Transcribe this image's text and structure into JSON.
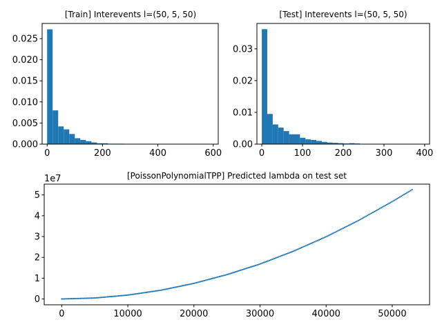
{
  "figure": {
    "background": "#ffffff",
    "series_color": "#1f77b4"
  },
  "chart_data": [
    {
      "type": "bar",
      "title": "[Train] Interevents l=(50, 5, 50)",
      "xlabel": "",
      "ylabel": "",
      "xlim": [
        -18,
        618
      ],
      "ylim": [
        0,
        0.0286
      ],
      "xticks": [
        0,
        200,
        400,
        600
      ],
      "xtick_labels": [
        "0",
        "200",
        "400",
        "600"
      ],
      "yticks": [
        0,
        0.005,
        0.01,
        0.015,
        0.02,
        0.025
      ],
      "ytick_labels": [
        "0.000",
        "0.005",
        "0.010",
        "0.015",
        "0.020",
        "0.025"
      ],
      "bin_width": 20,
      "bin_start": 0,
      "values": [
        0.0272,
        0.008,
        0.0042,
        0.0035,
        0.0024,
        0.0014,
        0.001,
        0.0007,
        0.0004,
        0.0002,
        0.0002,
        0.0001,
        0.0001,
        0.0001,
        5e-05,
        3e-05,
        2e-05,
        1e-05,
        1e-05,
        1e-05,
        1e-05,
        1e-05,
        1e-05,
        1e-05,
        1e-05,
        1e-05,
        1e-05,
        1e-05,
        1e-05
      ]
    },
    {
      "type": "bar",
      "title": "[Test] Interevents l=(50, 5, 50)",
      "xlabel": "",
      "ylabel": "",
      "xlim": [
        -12,
        412
      ],
      "ylim": [
        0,
        0.038
      ],
      "xticks": [
        0,
        100,
        200,
        300,
        400
      ],
      "xtick_labels": [
        "0",
        "100",
        "200",
        "300",
        "400"
      ],
      "yticks": [
        0,
        0.01,
        0.02,
        0.03
      ],
      "ytick_labels": [
        "0.00",
        "0.01",
        "0.02",
        "0.03"
      ],
      "bin_width": 13.4,
      "bin_start": 0,
      "values": [
        0.0362,
        0.0095,
        0.0062,
        0.0052,
        0.0041,
        0.0031,
        0.0031,
        0.002,
        0.0015,
        0.0013,
        0.001,
        0.0007,
        0.0005,
        0.0004,
        0.0003,
        0.0002,
        0.0003,
        0.0002,
        0.0001,
        0.0001,
        0.0001,
        0.0001,
        0.0001,
        0.0001,
        0.0001,
        0.0001,
        0.0001,
        0.0001,
        0.0001,
        0.0001
      ]
    },
    {
      "type": "scatter",
      "title": "[PoissonPolynomialTPP] Predicted lambda on test set",
      "xlabel": "",
      "ylabel": "",
      "y_scale_label": "1e7",
      "xlim": [
        -2650,
        55650
      ],
      "ylim": [
        -0.28,
        5.52
      ],
      "xticks": [
        0,
        10000,
        20000,
        30000,
        40000,
        50000
      ],
      "xtick_labels": [
        "0",
        "10000",
        "20000",
        "30000",
        "40000",
        "50000"
      ],
      "yticks": [
        0,
        1,
        2,
        3,
        4,
        5
      ],
      "ytick_labels": [
        "0",
        "1",
        "2",
        "3",
        "4",
        "5"
      ],
      "curve": "y = 1.87e-9 * x^2 (units of 1e7)",
      "x_range": [
        0,
        53000
      ],
      "points": [
        [
          0,
          0
        ],
        [
          5000,
          0.047
        ],
        [
          10000,
          0.187
        ],
        [
          15000,
          0.42
        ],
        [
          20000,
          0.75
        ],
        [
          25000,
          1.17
        ],
        [
          30000,
          1.68
        ],
        [
          35000,
          2.29
        ],
        [
          40000,
          2.99
        ],
        [
          45000,
          3.79
        ],
        [
          50000,
          4.68
        ],
        [
          53000,
          5.25
        ]
      ]
    }
  ]
}
